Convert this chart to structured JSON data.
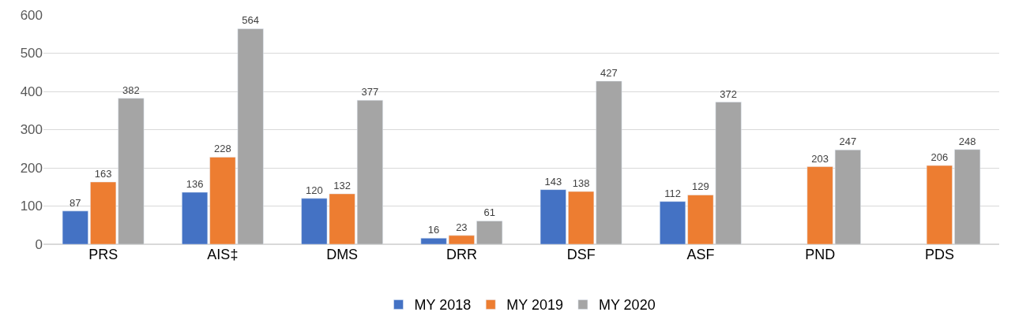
{
  "chart_data": {
    "type": "bar",
    "categories": [
      "PRS",
      "AIS‡",
      "DMS",
      "DRR",
      "DSF",
      "ASF",
      "PND",
      "PDS"
    ],
    "series": [
      {
        "name": "MY 2018",
        "color": "#4472c4",
        "values": [
          87,
          136,
          120,
          16,
          143,
          112,
          null,
          null
        ]
      },
      {
        "name": "MY 2019",
        "color": "#ed7d31",
        "values": [
          163,
          228,
          132,
          23,
          138,
          129,
          203,
          206
        ]
      },
      {
        "name": "MY 2020",
        "color": "#a5a5a5",
        "values": [
          382,
          564,
          377,
          61,
          427,
          372,
          247,
          248
        ]
      }
    ],
    "ylim": [
      0,
      600
    ],
    "yticks": [
      0,
      100,
      200,
      300,
      400,
      500,
      600
    ],
    "grid": "y",
    "legend": "bottom",
    "data_labels": true
  }
}
